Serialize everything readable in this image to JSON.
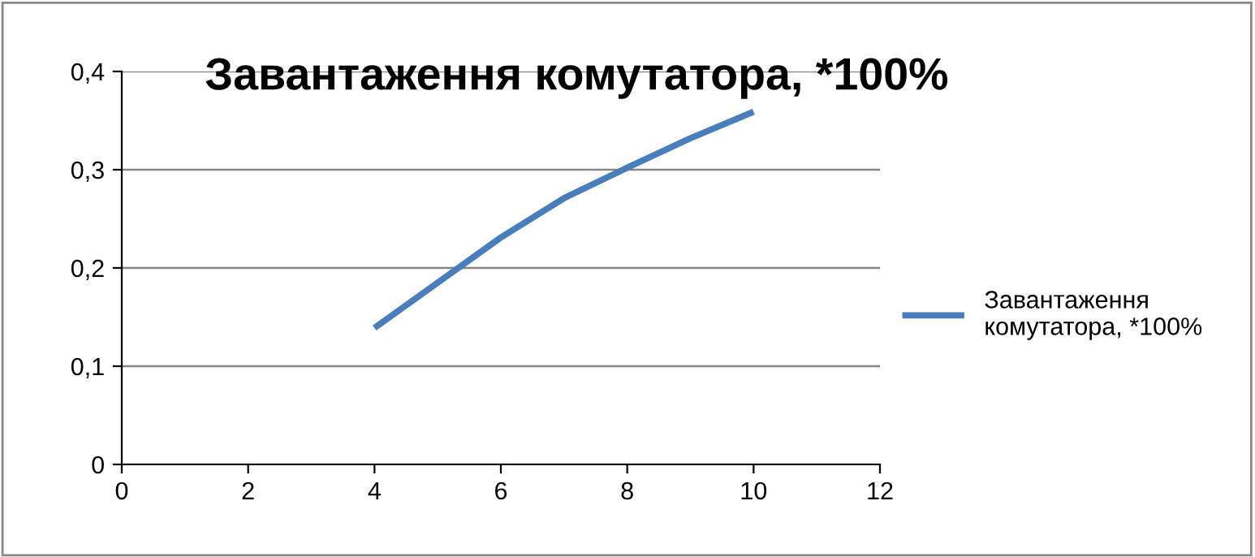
{
  "chart_data": {
    "type": "line",
    "title": "Завантаження комутатора, *100%",
    "x": [
      4,
      5,
      6,
      7,
      8,
      9,
      10
    ],
    "series": [
      {
        "name": "Завантаження комутатора, *100%",
        "color": "#4a7ebb",
        "values": [
          0.139,
          0.185,
          0.231,
          0.271,
          0.302,
          0.332,
          0.359
        ]
      }
    ],
    "xlim": [
      0,
      12
    ],
    "xticks": [
      0,
      2,
      4,
      6,
      8,
      10,
      12
    ],
    "ylim": [
      0,
      0.4
    ],
    "yticks": [
      {
        "value": 0,
        "label": "0"
      },
      {
        "value": 0.1,
        "label": "0,1"
      },
      {
        "value": 0.2,
        "label": "0,2"
      },
      {
        "value": 0.3,
        "label": "0,3"
      },
      {
        "value": 0.4,
        "label": "0,4"
      }
    ],
    "grid": "y",
    "legend": "right",
    "marker": "none",
    "line_style": "solid"
  }
}
